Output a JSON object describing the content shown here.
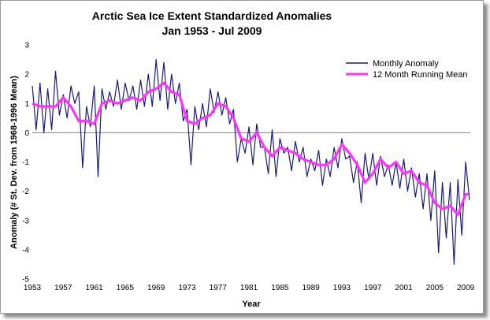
{
  "chart_data": {
    "type": "line",
    "title": "Arctic Sea Ice Extent Standardized Anomalies",
    "subtitle": "Jan 1953 - Jul 2009",
    "xlabel": "Year",
    "ylabel": "Anomaly (# St. Dev. from 1968-1996 Mean)",
    "xlim": [
      1953,
      2009.6
    ],
    "ylim": [
      -5,
      3
    ],
    "xticks": [
      "1953",
      "1957",
      "1961",
      "1965",
      "1969",
      "1973",
      "1977",
      "1981",
      "1985",
      "1989",
      "1993",
      "1997",
      "2001",
      "2005",
      "2009"
    ],
    "yticks": [
      "3",
      "2",
      "1",
      "0",
      "-1",
      "-2",
      "-3",
      "-4",
      "-5"
    ],
    "zero_line": true,
    "grid": false,
    "legend_position": "top-right",
    "series": [
      {
        "name": "Monthly Anomaly",
        "color": "#1a1a7a",
        "note_values_are_approximate": false,
        "x": [
          1953.0,
          1953.5,
          1954.0,
          1954.5,
          1955.0,
          1955.5,
          1956.0,
          1956.5,
          1957.0,
          1957.5,
          1958.0,
          1958.5,
          1959.0,
          1959.5,
          1960.0,
          1960.5,
          1961.0,
          1961.5,
          1962.0,
          1962.5,
          1963.0,
          1963.5,
          1964.0,
          1964.5,
          1965.0,
          1965.5,
          1966.0,
          1966.5,
          1967.0,
          1967.5,
          1968.0,
          1968.5,
          1969.0,
          1969.5,
          1970.0,
          1970.5,
          1971.0,
          1971.5,
          1972.0,
          1972.5,
          1973.0,
          1973.5,
          1974.0,
          1974.5,
          1975.0,
          1975.5,
          1976.0,
          1976.5,
          1977.0,
          1977.5,
          1978.0,
          1978.5,
          1979.0,
          1979.5,
          1980.0,
          1980.5,
          1981.0,
          1981.5,
          1982.0,
          1982.5,
          1983.0,
          1983.5,
          1984.0,
          1984.5,
          1985.0,
          1985.5,
          1986.0,
          1986.5,
          1987.0,
          1987.5,
          1988.0,
          1988.5,
          1989.0,
          1989.5,
          1990.0,
          1990.5,
          1991.0,
          1991.5,
          1992.0,
          1992.5,
          1993.0,
          1993.5,
          1994.0,
          1994.5,
          1995.0,
          1995.5,
          1996.0,
          1996.5,
          1997.0,
          1997.5,
          1998.0,
          1998.5,
          1999.0,
          1999.5,
          2000.0,
          2000.5,
          2001.0,
          2001.5,
          2002.0,
          2002.5,
          2003.0,
          2003.5,
          2004.0,
          2004.5,
          2005.0,
          2005.5,
          2006.0,
          2006.5,
          2007.0,
          2007.5,
          2008.0,
          2008.5,
          2009.0,
          2009.5
        ],
        "values": [
          1.6,
          0.1,
          1.7,
          0.0,
          1.5,
          0.1,
          2.1,
          0.6,
          1.3,
          0.5,
          1.6,
          1.0,
          1.4,
          -1.2,
          0.9,
          0.2,
          1.6,
          -1.5,
          1.5,
          0.8,
          1.4,
          0.9,
          1.8,
          0.8,
          1.7,
          1.1,
          1.6,
          0.8,
          1.8,
          0.9,
          2.0,
          0.9,
          2.5,
          1.1,
          2.4,
          0.8,
          2.0,
          1.0,
          1.7,
          0.4,
          0.8,
          -1.1,
          0.9,
          0.1,
          1.0,
          0.2,
          1.5,
          0.7,
          1.4,
          0.6,
          1.2,
          0.3,
          0.8,
          -1.0,
          -0.2,
          -0.7,
          0.2,
          -1.1,
          0.3,
          -0.5,
          -0.5,
          -1.4,
          0.1,
          -1.5,
          -0.2,
          -0.7,
          -0.5,
          -1.3,
          -0.3,
          -1.0,
          -0.5,
          -1.5,
          -0.9,
          -1.3,
          -0.6,
          -1.8,
          -0.9,
          -1.5,
          -0.5,
          -1.2,
          -0.2,
          -0.9,
          -0.8,
          -1.7,
          -1.0,
          -2.4,
          -0.7,
          -1.6,
          -0.7,
          -1.8,
          -0.8,
          -1.5,
          -1.1,
          -1.8,
          -1.0,
          -1.9,
          -0.9,
          -2.0,
          -1.2,
          -2.2,
          -1.4,
          -2.6,
          -1.4,
          -3.0,
          -1.3,
          -4.1,
          -1.7,
          -3.6,
          -1.7,
          -4.5,
          -1.6,
          -3.5,
          -1.0,
          -2.3
        ]
      },
      {
        "name": "12 Month Running Mean",
        "color": "#ff33ff",
        "x": [
          1953.0,
          1954.0,
          1955.0,
          1956.0,
          1957.0,
          1958.0,
          1959.0,
          1960.0,
          1961.0,
          1962.0,
          1963.0,
          1964.0,
          1965.0,
          1966.0,
          1967.0,
          1968.0,
          1969.0,
          1970.0,
          1971.0,
          1972.0,
          1973.0,
          1974.0,
          1975.0,
          1976.0,
          1977.0,
          1978.0,
          1979.0,
          1980.0,
          1981.0,
          1982.0,
          1983.0,
          1984.0,
          1985.0,
          1986.0,
          1987.0,
          1988.0,
          1989.0,
          1990.0,
          1991.0,
          1992.0,
          1993.0,
          1994.0,
          1995.0,
          1996.0,
          1997.0,
          1998.0,
          1999.0,
          2000.0,
          2001.0,
          2002.0,
          2003.0,
          2004.0,
          2005.0,
          2006.0,
          2007.0,
          2008.0,
          2009.0,
          2009.4
        ],
        "values": [
          1.0,
          0.9,
          0.9,
          0.9,
          1.2,
          0.9,
          0.4,
          0.4,
          0.3,
          1.0,
          1.1,
          1.0,
          1.1,
          1.2,
          1.1,
          1.4,
          1.5,
          1.7,
          1.4,
          1.3,
          0.4,
          0.3,
          0.5,
          0.6,
          1.0,
          0.9,
          0.5,
          -0.2,
          -0.3,
          0.0,
          -0.5,
          -0.8,
          -0.5,
          -0.6,
          -0.7,
          -0.9,
          -1.0,
          -1.1,
          -1.1,
          -0.9,
          -0.4,
          -0.7,
          -1.1,
          -1.7,
          -1.4,
          -0.9,
          -1.2,
          -1.0,
          -1.4,
          -1.3,
          -1.7,
          -1.8,
          -2.4,
          -2.6,
          -2.5,
          -2.8,
          -2.1,
          -2.1
        ]
      }
    ]
  }
}
